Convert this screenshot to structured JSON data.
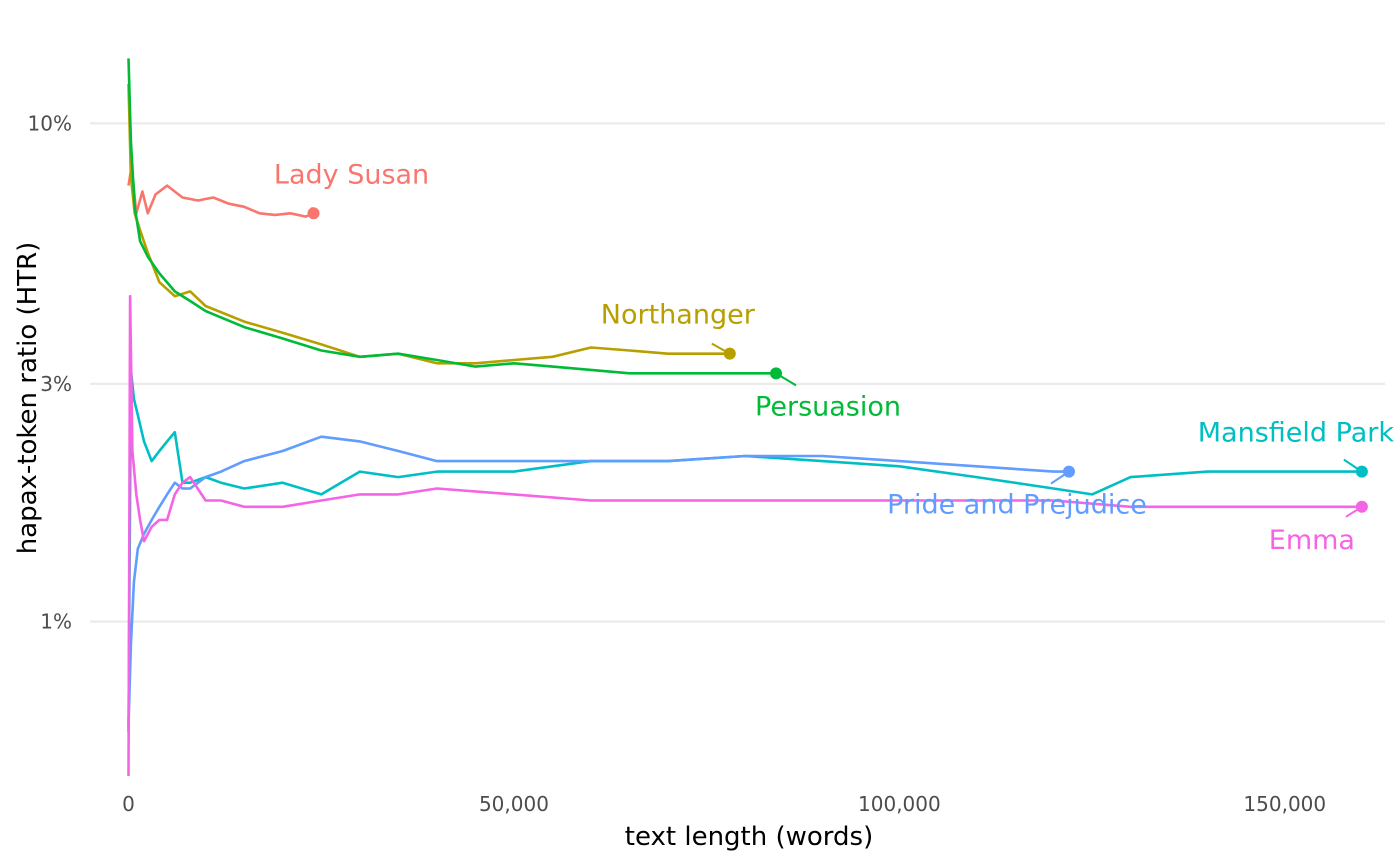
{
  "chart_data": {
    "type": "line",
    "xlabel": "text length (words)",
    "ylabel": "hapax-token ratio (HTR)",
    "x_scale": "linear",
    "y_scale": "log",
    "xlim": [
      -5000,
      163000
    ],
    "ylim": [
      0.0047,
      0.147
    ],
    "x_ticks": [
      0,
      50000,
      100000,
      150000
    ],
    "x_tick_labels": [
      "0",
      "50,000",
      "100,000",
      "150,000"
    ],
    "y_ticks": [
      0.01,
      0.03,
      0.1
    ],
    "y_tick_labels": [
      "1%",
      "3%",
      "10%"
    ],
    "grid": "horizontal major",
    "legend": "none (direct labels)",
    "series": [
      {
        "name": "Lady Susan",
        "color": "#F8766D",
        "x": [
          0,
          400,
          1000,
          1800,
          2500,
          3500,
          5000,
          7000,
          9000,
          11000,
          13000,
          15000,
          17000,
          19000,
          21000,
          23000,
          24000
        ],
        "y": [
          0.075,
          0.082,
          0.066,
          0.073,
          0.066,
          0.072,
          0.075,
          0.071,
          0.07,
          0.071,
          0.069,
          0.068,
          0.066,
          0.0655,
          0.066,
          0.065,
          0.066
        ]
      },
      {
        "name": "Northanger",
        "color": "#B79F00",
        "x": [
          0,
          300,
          800,
          1500,
          2500,
          4000,
          6000,
          8000,
          10000,
          15000,
          20000,
          25000,
          30000,
          35000,
          40000,
          45000,
          50000,
          55000,
          60000,
          65000,
          70000,
          75000,
          78000
        ],
        "y": [
          0.12,
          0.078,
          0.066,
          0.061,
          0.055,
          0.048,
          0.045,
          0.046,
          0.043,
          0.04,
          0.038,
          0.036,
          0.034,
          0.0345,
          0.033,
          0.033,
          0.0335,
          0.034,
          0.0355,
          0.035,
          0.0345,
          0.0345,
          0.0345
        ]
      },
      {
        "name": "Persuasion",
        "color": "#00BA38",
        "x": [
          0,
          300,
          800,
          1500,
          2500,
          4000,
          6000,
          8000,
          10000,
          15000,
          20000,
          25000,
          30000,
          35000,
          40000,
          45000,
          50000,
          55000,
          60000,
          65000,
          70000,
          75000,
          80000,
          84000
        ],
        "y": [
          0.135,
          0.092,
          0.068,
          0.058,
          0.054,
          0.05,
          0.046,
          0.044,
          0.042,
          0.039,
          0.037,
          0.035,
          0.034,
          0.0345,
          0.0335,
          0.0325,
          0.033,
          0.0325,
          0.032,
          0.0315,
          0.0315,
          0.0315,
          0.0315,
          0.0315
        ]
      },
      {
        "name": "Mansfield Park",
        "color": "#00BFC4",
        "x": [
          0,
          300,
          700,
          1200,
          2000,
          3000,
          4000,
          5000,
          6000,
          7000,
          8000,
          10000,
          12000,
          15000,
          20000,
          25000,
          30000,
          35000,
          40000,
          50000,
          60000,
          70000,
          80000,
          90000,
          100000,
          110000,
          120000,
          125000,
          130000,
          140000,
          150000,
          160000
        ],
        "y": [
          0.006,
          0.032,
          0.028,
          0.026,
          0.023,
          0.021,
          0.022,
          0.023,
          0.024,
          0.019,
          0.019,
          0.0195,
          0.019,
          0.0185,
          0.019,
          0.018,
          0.02,
          0.0195,
          0.02,
          0.02,
          0.021,
          0.021,
          0.0215,
          0.021,
          0.0205,
          0.0195,
          0.0185,
          0.018,
          0.0195,
          0.02,
          0.02,
          0.02
        ]
      },
      {
        "name": "Pride and Prejudice",
        "color": "#619CFF",
        "x": [
          0,
          300,
          700,
          1200,
          2000,
          3000,
          4000,
          5000,
          6000,
          7000,
          8000,
          10000,
          12000,
          15000,
          20000,
          25000,
          30000,
          35000,
          40000,
          50000,
          60000,
          70000,
          80000,
          90000,
          100000,
          110000,
          120000,
          122000
        ],
        "y": [
          0.0062,
          0.009,
          0.012,
          0.014,
          0.015,
          0.016,
          0.017,
          0.018,
          0.019,
          0.0185,
          0.0185,
          0.0195,
          0.02,
          0.021,
          0.022,
          0.0235,
          0.023,
          0.022,
          0.021,
          0.021,
          0.021,
          0.021,
          0.0215,
          0.0215,
          0.021,
          0.0205,
          0.02,
          0.02
        ]
      },
      {
        "name": "Emma",
        "color": "#F564E3",
        "x": [
          0,
          200,
          500,
          1000,
          1500,
          2000,
          3000,
          4000,
          5000,
          6000,
          7000,
          8000,
          10000,
          12000,
          15000,
          20000,
          25000,
          30000,
          35000,
          40000,
          50000,
          60000,
          70000,
          80000,
          90000,
          100000,
          110000,
          120000,
          130000,
          140000,
          150000,
          160000
        ],
        "y": [
          0.0049,
          0.045,
          0.022,
          0.018,
          0.016,
          0.0145,
          0.0155,
          0.016,
          0.016,
          0.018,
          0.019,
          0.0195,
          0.0175,
          0.0175,
          0.017,
          0.017,
          0.0175,
          0.018,
          0.018,
          0.0185,
          0.018,
          0.0175,
          0.0175,
          0.0175,
          0.0175,
          0.0175,
          0.0175,
          0.0175,
          0.017,
          0.017,
          0.017,
          0.017
        ]
      }
    ]
  }
}
